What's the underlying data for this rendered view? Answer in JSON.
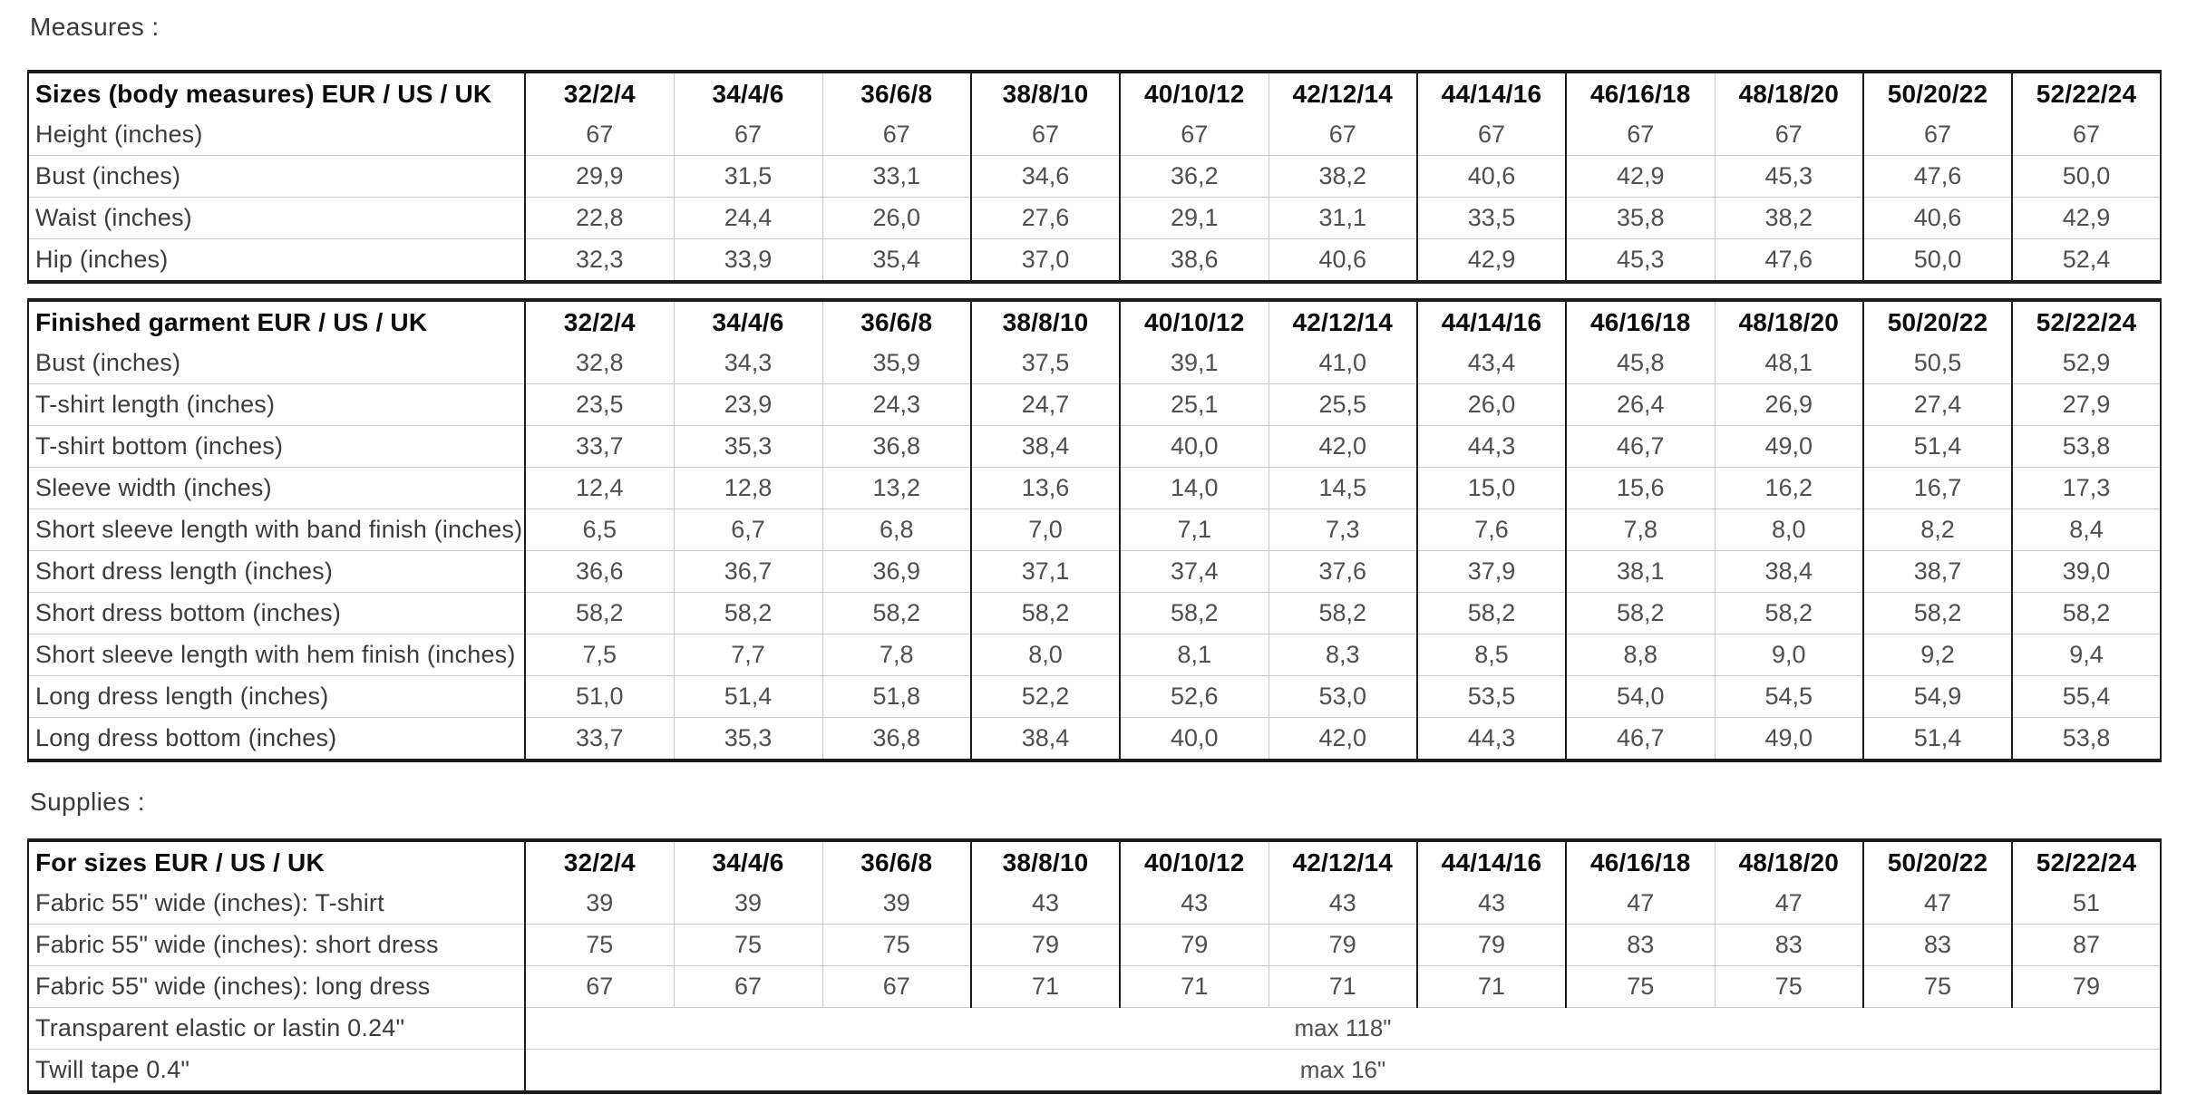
{
  "labels": {
    "measures": "Measures :",
    "supplies": "Supplies :"
  },
  "sizes": [
    "32/2/4",
    "34/4/6",
    "36/6/8",
    "38/8/10",
    "40/10/12",
    "42/12/14",
    "44/14/16",
    "46/16/18",
    "48/18/20",
    "50/20/22",
    "52/22/24"
  ],
  "colors": {
    "grid_light": "#c9c9c9",
    "grid_dark": "#1c1c1c",
    "header_text": "#0c0c0c",
    "body_text": "#4f4f4f",
    "background": "#ffffff"
  },
  "tables": [
    {
      "title": "Sizes (body measures) EUR / US / UK",
      "rows": [
        {
          "label": "Height (inches)",
          "values": [
            "67",
            "67",
            "67",
            "67",
            "67",
            "67",
            "67",
            "67",
            "67",
            "67",
            "67"
          ]
        },
        {
          "label": "Bust (inches)",
          "values": [
            "29,9",
            "31,5",
            "33,1",
            "34,6",
            "36,2",
            "38,2",
            "40,6",
            "42,9",
            "45,3",
            "47,6",
            "50,0"
          ]
        },
        {
          "label": "Waist (inches)",
          "values": [
            "22,8",
            "24,4",
            "26,0",
            "27,6",
            "29,1",
            "31,1",
            "33,5",
            "35,8",
            "38,2",
            "40,6",
            "42,9"
          ]
        },
        {
          "label": "Hip (inches)",
          "values": [
            "32,3",
            "33,9",
            "35,4",
            "37,0",
            "38,6",
            "40,6",
            "42,9",
            "45,3",
            "47,6",
            "50,0",
            "52,4"
          ]
        }
      ],
      "merged_rows": []
    },
    {
      "title": "Finished garment EUR / US / UK",
      "rows": [
        {
          "label": "Bust (inches)",
          "values": [
            "32,8",
            "34,3",
            "35,9",
            "37,5",
            "39,1",
            "41,0",
            "43,4",
            "45,8",
            "48,1",
            "50,5",
            "52,9"
          ]
        },
        {
          "label": "T-shirt length (inches)",
          "values": [
            "23,5",
            "23,9",
            "24,3",
            "24,7",
            "25,1",
            "25,5",
            "26,0",
            "26,4",
            "26,9",
            "27,4",
            "27,9"
          ]
        },
        {
          "label": "T-shirt bottom (inches)",
          "values": [
            "33,7",
            "35,3",
            "36,8",
            "38,4",
            "40,0",
            "42,0",
            "44,3",
            "46,7",
            "49,0",
            "51,4",
            "53,8"
          ]
        },
        {
          "label": "Sleeve width (inches)",
          "values": [
            "12,4",
            "12,8",
            "13,2",
            "13,6",
            "14,0",
            "14,5",
            "15,0",
            "15,6",
            "16,2",
            "16,7",
            "17,3"
          ]
        },
        {
          "label": "Short sleeve length with band finish (inches)",
          "values": [
            "6,5",
            "6,7",
            "6,8",
            "7,0",
            "7,1",
            "7,3",
            "7,6",
            "7,8",
            "8,0",
            "8,2",
            "8,4"
          ]
        },
        {
          "label": "Short dress length (inches)",
          "values": [
            "36,6",
            "36,7",
            "36,9",
            "37,1",
            "37,4",
            "37,6",
            "37,9",
            "38,1",
            "38,4",
            "38,7",
            "39,0"
          ]
        },
        {
          "label": "Short dress bottom (inches)",
          "values": [
            "58,2",
            "58,2",
            "58,2",
            "58,2",
            "58,2",
            "58,2",
            "58,2",
            "58,2",
            "58,2",
            "58,2",
            "58,2"
          ]
        },
        {
          "label": "Short sleeve length with hem finish (inches)",
          "values": [
            "7,5",
            "7,7",
            "7,8",
            "8,0",
            "8,1",
            "8,3",
            "8,5",
            "8,8",
            "9,0",
            "9,2",
            "9,4"
          ]
        },
        {
          "label": "Long dress length (inches)",
          "values": [
            "51,0",
            "51,4",
            "51,8",
            "52,2",
            "52,6",
            "53,0",
            "53,5",
            "54,0",
            "54,5",
            "54,9",
            "55,4"
          ]
        },
        {
          "label": "Long dress bottom (inches)",
          "values": [
            "33,7",
            "35,3",
            "36,8",
            "38,4",
            "40,0",
            "42,0",
            "44,3",
            "46,7",
            "49,0",
            "51,4",
            "53,8"
          ]
        }
      ],
      "merged_rows": []
    },
    {
      "title": "For sizes EUR / US / UK",
      "rows": [
        {
          "label": "Fabric 55\" wide (inches): T-shirt",
          "values": [
            "39",
            "39",
            "39",
            "43",
            "43",
            "43",
            "43",
            "47",
            "47",
            "47",
            "51"
          ]
        },
        {
          "label": "Fabric 55\" wide (inches): short dress",
          "values": [
            "75",
            "75",
            "75",
            "79",
            "79",
            "79",
            "79",
            "83",
            "83",
            "83",
            "87"
          ]
        },
        {
          "label": "Fabric 55\" wide (inches): long dress",
          "values": [
            "67",
            "67",
            "67",
            "71",
            "71",
            "71",
            "71",
            "75",
            "75",
            "75",
            "79"
          ]
        }
      ],
      "merged_rows": [
        {
          "label": "Transparent elastic or lastin 0.24\"",
          "value": "max 118\""
        },
        {
          "label": "Twill tape 0.4\"",
          "value": "max 16\""
        }
      ]
    }
  ]
}
